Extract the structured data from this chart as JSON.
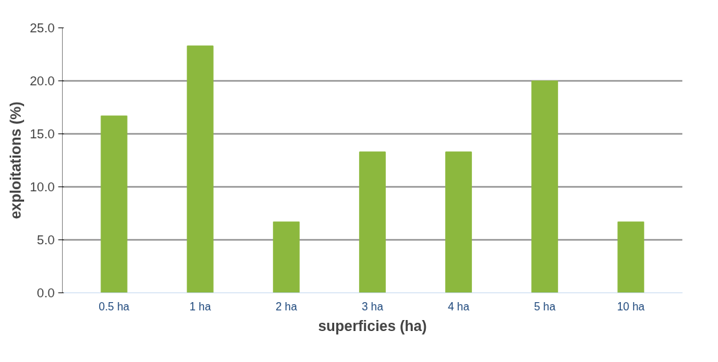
{
  "chart_data": {
    "type": "bar",
    "xlabel": "superficies (ha)",
    "ylabel": "exploitations (%)",
    "categories": [
      "0.5 ha",
      "1 ha",
      "2 ha",
      "3 ha",
      "4 ha",
      "5 ha",
      "10 ha"
    ],
    "values": [
      16.7,
      23.3,
      6.7,
      13.3,
      13.3,
      20.0,
      6.7
    ],
    "color": "#8cb83e",
    "ylim": [
      0,
      25
    ],
    "yticks": [
      {
        "value": 0,
        "label": "0.0"
      },
      {
        "value": 5,
        "label": "5.0"
      },
      {
        "value": 10,
        "label": "10.0"
      },
      {
        "value": 15,
        "label": "15.0"
      },
      {
        "value": 20,
        "label": "20.0"
      },
      {
        "value": 25,
        "label": "25.0"
      }
    ],
    "grid": "y"
  }
}
